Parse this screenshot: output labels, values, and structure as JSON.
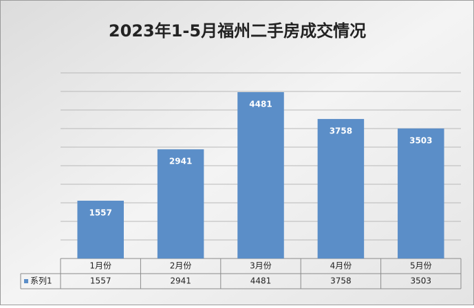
{
  "chart_data": {
    "type": "bar",
    "title": "2023年1-5月福州二手房成交情况",
    "categories": [
      "1月份",
      "2月份",
      "3月份",
      "4月份",
      "5月份"
    ],
    "series": [
      {
        "name": "系列1",
        "color": "#5b8ec8",
        "values": [
          1557,
          2941,
          4481,
          3758,
          3503
        ]
      }
    ],
    "ylim": [
      0,
      5000
    ],
    "yticks": [
      0,
      500,
      1000,
      1500,
      2000,
      2500,
      3000,
      3500,
      4000,
      4500,
      5000
    ],
    "y_tick_labels": false,
    "grid": true,
    "data_table": true
  }
}
